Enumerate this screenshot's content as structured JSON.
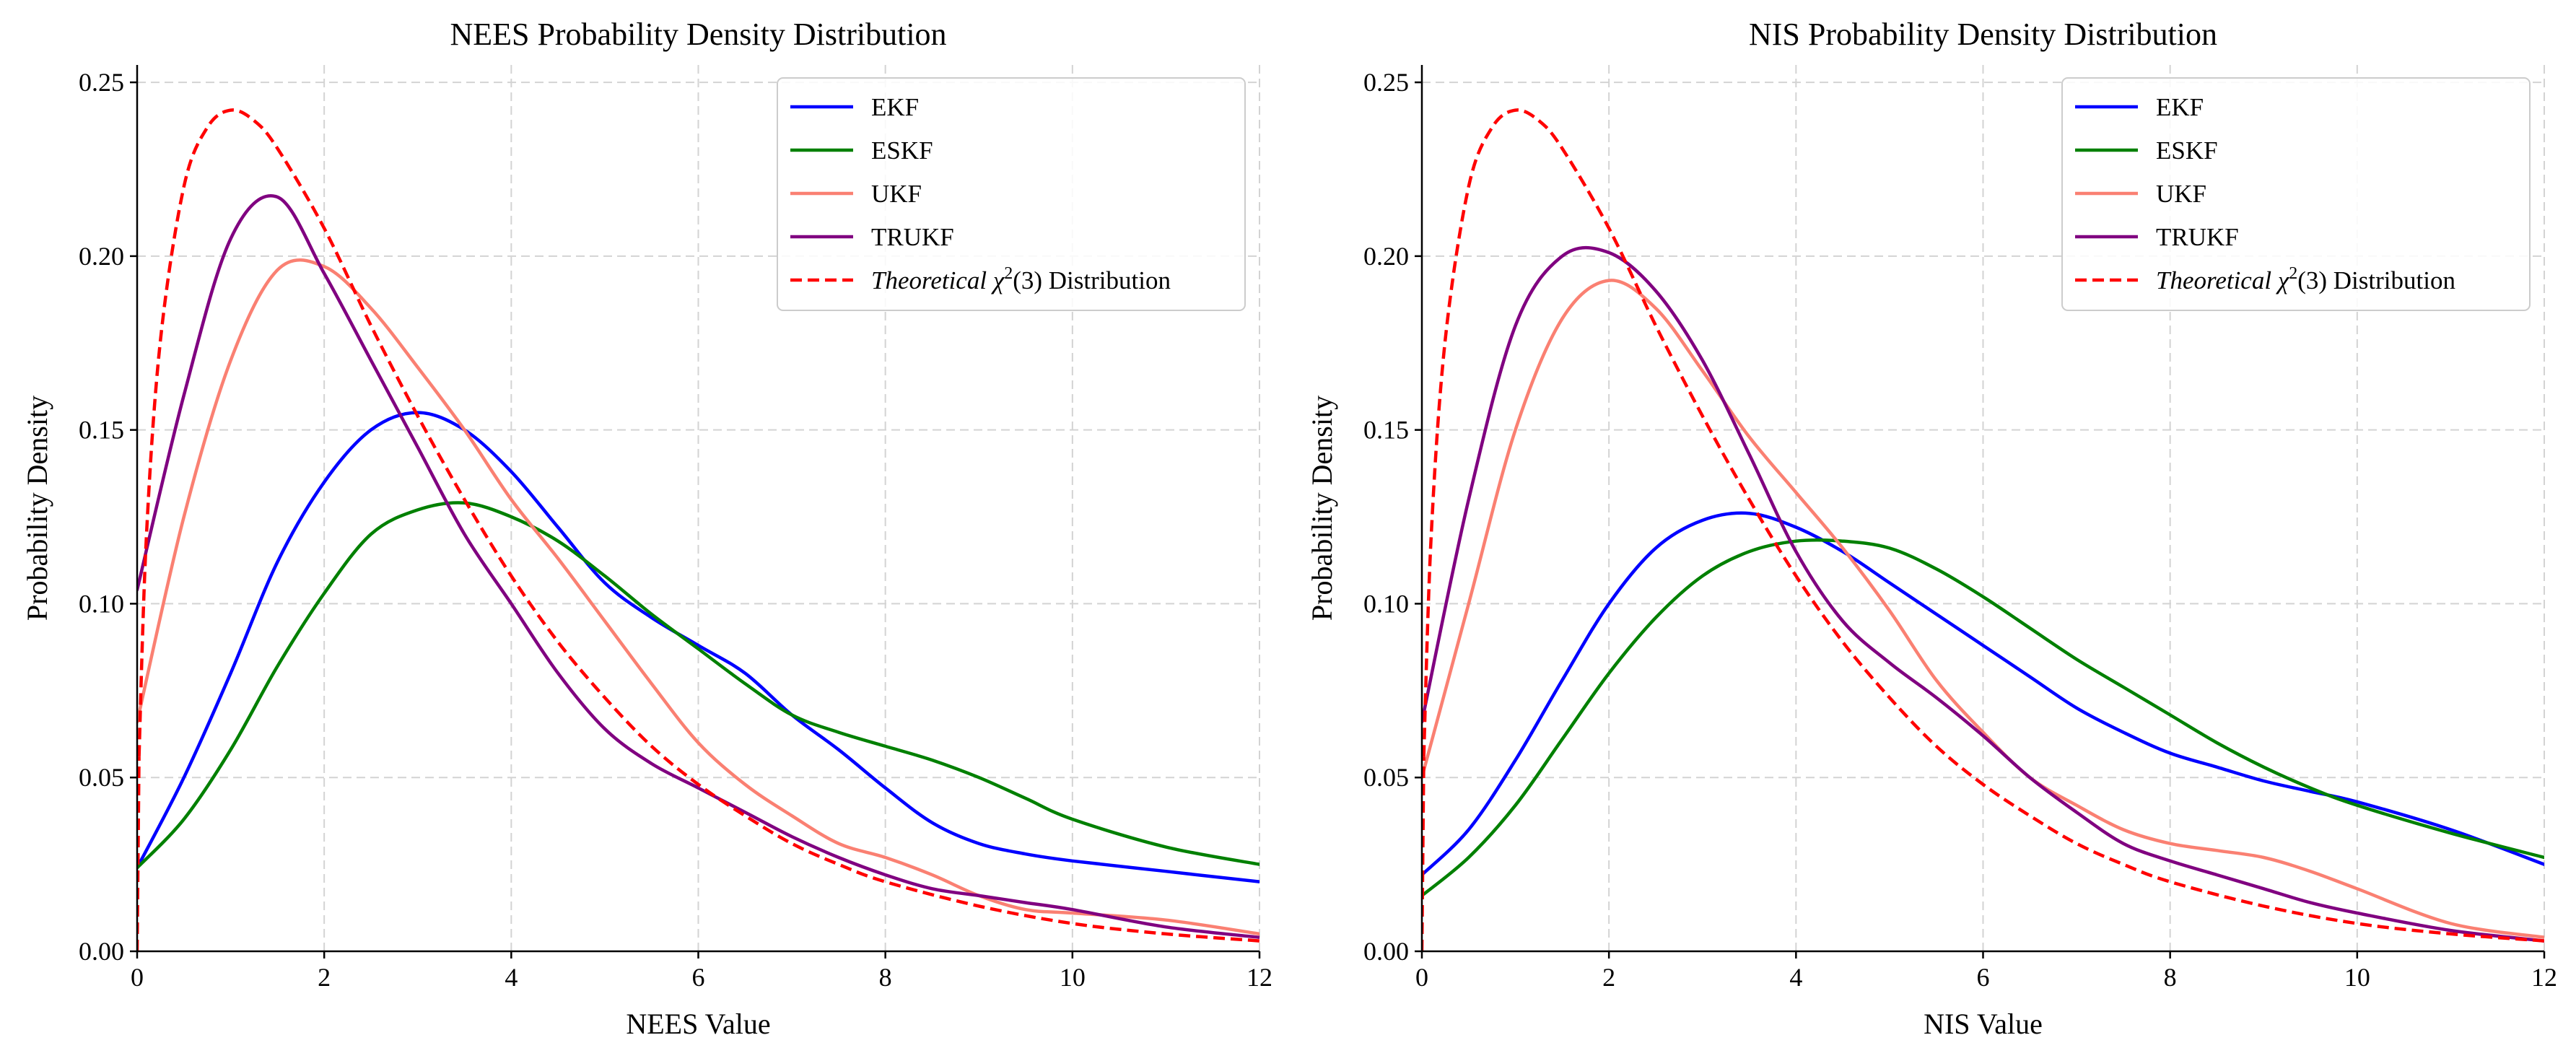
{
  "chart_data": [
    {
      "type": "line",
      "title": "NEES Probability Density Distribution",
      "xlabel": "NEES Value",
      "ylabel": "Probability Density",
      "xlim": [
        0,
        12
      ],
      "ylim": [
        0,
        0.255
      ],
      "xticks": [
        "0",
        "2",
        "4",
        "6",
        "8",
        "10",
        "12"
      ],
      "yticks": [
        "0.00",
        "0.05",
        "0.10",
        "0.15",
        "0.20",
        "0.25"
      ],
      "grid": true,
      "legend_position": "top-right",
      "series": [
        {
          "name": "EKF",
          "color": "#0000ff",
          "dash": "solid",
          "points": [
            [
              0,
              0.024
            ],
            [
              0.5,
              0.05
            ],
            [
              1,
              0.08
            ],
            [
              1.5,
              0.112
            ],
            [
              2,
              0.135
            ],
            [
              2.5,
              0.15
            ],
            [
              3,
              0.155
            ],
            [
              3.5,
              0.15
            ],
            [
              4,
              0.138
            ],
            [
              4.5,
              0.122
            ],
            [
              5,
              0.106
            ],
            [
              5.5,
              0.096
            ],
            [
              6,
              0.088
            ],
            [
              6.5,
              0.08
            ],
            [
              7,
              0.068
            ],
            [
              7.5,
              0.058
            ],
            [
              8,
              0.047
            ],
            [
              8.5,
              0.037
            ],
            [
              9,
              0.031
            ],
            [
              9.5,
              0.028
            ],
            [
              10,
              0.026
            ],
            [
              11,
              0.023
            ],
            [
              12,
              0.02
            ]
          ]
        },
        {
          "name": "ESKF",
          "color": "#008000",
          "dash": "solid",
          "points": [
            [
              0,
              0.024
            ],
            [
              0.5,
              0.038
            ],
            [
              1,
              0.058
            ],
            [
              1.5,
              0.082
            ],
            [
              2,
              0.103
            ],
            [
              2.5,
              0.12
            ],
            [
              3,
              0.127
            ],
            [
              3.5,
              0.129
            ],
            [
              4,
              0.125
            ],
            [
              4.5,
              0.118
            ],
            [
              5,
              0.108
            ],
            [
              5.5,
              0.097
            ],
            [
              6,
              0.087
            ],
            [
              6.5,
              0.077
            ],
            [
              7,
              0.068
            ],
            [
              7.5,
              0.063
            ],
            [
              8,
              0.059
            ],
            [
              8.5,
              0.055
            ],
            [
              9,
              0.05
            ],
            [
              9.5,
              0.044
            ],
            [
              10,
              0.038
            ],
            [
              11,
              0.03
            ],
            [
              12,
              0.025
            ]
          ]
        },
        {
          "name": "UKF",
          "color": "#fa8072",
          "dash": "solid",
          "points": [
            [
              0,
              0.066
            ],
            [
              0.5,
              0.125
            ],
            [
              1,
              0.17
            ],
            [
              1.5,
              0.196
            ],
            [
              2,
              0.197
            ],
            [
              2.5,
              0.185
            ],
            [
              3,
              0.168
            ],
            [
              3.5,
              0.15
            ],
            [
              4,
              0.13
            ],
            [
              4.5,
              0.113
            ],
            [
              5,
              0.095
            ],
            [
              5.5,
              0.077
            ],
            [
              6,
              0.06
            ],
            [
              6.5,
              0.048
            ],
            [
              7,
              0.039
            ],
            [
              7.5,
              0.031
            ],
            [
              8,
              0.027
            ],
            [
              8.5,
              0.022
            ],
            [
              9,
              0.016
            ],
            [
              9.5,
              0.012
            ],
            [
              10,
              0.011
            ],
            [
              11,
              0.009
            ],
            [
              12,
              0.005
            ]
          ]
        },
        {
          "name": "TRUKF",
          "color": "#800080",
          "dash": "solid",
          "points": [
            [
              0,
              0.104
            ],
            [
              0.5,
              0.16
            ],
            [
              1,
              0.205
            ],
            [
              1.5,
              0.217
            ],
            [
              2,
              0.195
            ],
            [
              2.5,
              0.17
            ],
            [
              3,
              0.145
            ],
            [
              3.5,
              0.12
            ],
            [
              4,
              0.1
            ],
            [
              4.5,
              0.08
            ],
            [
              5,
              0.064
            ],
            [
              5.5,
              0.054
            ],
            [
              6,
              0.047
            ],
            [
              6.5,
              0.04
            ],
            [
              7,
              0.033
            ],
            [
              7.5,
              0.027
            ],
            [
              8,
              0.022
            ],
            [
              8.5,
              0.018
            ],
            [
              9,
              0.016
            ],
            [
              9.5,
              0.014
            ],
            [
              10,
              0.012
            ],
            [
              11,
              0.007
            ],
            [
              12,
              0.004
            ]
          ]
        },
        {
          "name": "Theoretical χ²(3) Distribution",
          "color": "#ff0000",
          "dash": "dashed",
          "points": [
            [
              0.02,
              0.056
            ],
            [
              0.1,
              0.12
            ],
            [
              0.25,
              0.176
            ],
            [
              0.5,
              0.22
            ],
            [
              0.75,
              0.237
            ],
            [
              1,
              0.242
            ],
            [
              1.25,
              0.239
            ],
            [
              1.5,
              0.231
            ],
            [
              2,
              0.208
            ],
            [
              2.5,
              0.18
            ],
            [
              3,
              0.154
            ],
            [
              3.5,
              0.13
            ],
            [
              4,
              0.108
            ],
            [
              4.5,
              0.089
            ],
            [
              5,
              0.073
            ],
            [
              5.5,
              0.059
            ],
            [
              6,
              0.048
            ],
            [
              6.5,
              0.039
            ],
            [
              7,
              0.031
            ],
            [
              7.5,
              0.025
            ],
            [
              8,
              0.02
            ],
            [
              9,
              0.013
            ],
            [
              10,
              0.008
            ],
            [
              11,
              0.005
            ],
            [
              12,
              0.003
            ]
          ]
        }
      ]
    },
    {
      "type": "line",
      "title": "NIS Probability Density Distribution",
      "xlabel": "NIS Value",
      "ylabel": "Probability Density",
      "xlim": [
        0,
        12
      ],
      "ylim": [
        0,
        0.255
      ],
      "xticks": [
        "0",
        "2",
        "4",
        "6",
        "8",
        "10",
        "12"
      ],
      "yticks": [
        "0.00",
        "0.05",
        "0.10",
        "0.15",
        "0.20",
        "0.25"
      ],
      "grid": true,
      "legend_position": "top-right",
      "series": [
        {
          "name": "EKF",
          "color": "#0000ff",
          "dash": "solid",
          "points": [
            [
              0,
              0.022
            ],
            [
              0.5,
              0.035
            ],
            [
              1,
              0.055
            ],
            [
              1.5,
              0.078
            ],
            [
              2,
              0.1
            ],
            [
              2.5,
              0.116
            ],
            [
              3,
              0.124
            ],
            [
              3.5,
              0.126
            ],
            [
              4,
              0.122
            ],
            [
              4.5,
              0.115
            ],
            [
              5,
              0.106
            ],
            [
              5.5,
              0.097
            ],
            [
              6,
              0.088
            ],
            [
              6.5,
              0.079
            ],
            [
              7,
              0.07
            ],
            [
              7.5,
              0.063
            ],
            [
              8,
              0.057
            ],
            [
              8.5,
              0.053
            ],
            [
              9,
              0.049
            ],
            [
              9.5,
              0.046
            ],
            [
              10,
              0.043
            ],
            [
              11,
              0.035
            ],
            [
              12,
              0.025
            ]
          ]
        },
        {
          "name": "ESKF",
          "color": "#008000",
          "dash": "solid",
          "points": [
            [
              0,
              0.016
            ],
            [
              0.5,
              0.027
            ],
            [
              1,
              0.042
            ],
            [
              1.5,
              0.061
            ],
            [
              2,
              0.08
            ],
            [
              2.5,
              0.096
            ],
            [
              3,
              0.108
            ],
            [
              3.5,
              0.115
            ],
            [
              4,
              0.118
            ],
            [
              4.5,
              0.118
            ],
            [
              5,
              0.116
            ],
            [
              5.5,
              0.11
            ],
            [
              6,
              0.102
            ],
            [
              6.5,
              0.093
            ],
            [
              7,
              0.084
            ],
            [
              7.5,
              0.076
            ],
            [
              8,
              0.068
            ],
            [
              8.5,
              0.06
            ],
            [
              9,
              0.053
            ],
            [
              9.5,
              0.047
            ],
            [
              10,
              0.042
            ],
            [
              11,
              0.034
            ],
            [
              12,
              0.027
            ]
          ]
        },
        {
          "name": "UKF",
          "color": "#fa8072",
          "dash": "solid",
          "points": [
            [
              0,
              0.05
            ],
            [
              0.5,
              0.1
            ],
            [
              1,
              0.15
            ],
            [
              1.5,
              0.182
            ],
            [
              2,
              0.193
            ],
            [
              2.5,
              0.185
            ],
            [
              3,
              0.167
            ],
            [
              3.5,
              0.148
            ],
            [
              4,
              0.132
            ],
            [
              4.5,
              0.116
            ],
            [
              5,
              0.098
            ],
            [
              5.5,
              0.078
            ],
            [
              6,
              0.063
            ],
            [
              6.5,
              0.05
            ],
            [
              7,
              0.042
            ],
            [
              7.5,
              0.035
            ],
            [
              8,
              0.031
            ],
            [
              8.5,
              0.029
            ],
            [
              9,
              0.027
            ],
            [
              9.5,
              0.023
            ],
            [
              10,
              0.018
            ],
            [
              11,
              0.008
            ],
            [
              12,
              0.004
            ]
          ]
        },
        {
          "name": "TRUKF",
          "color": "#800080",
          "dash": "solid",
          "points": [
            [
              0,
              0.066
            ],
            [
              0.5,
              0.13
            ],
            [
              1,
              0.18
            ],
            [
              1.5,
              0.2
            ],
            [
              2,
              0.201
            ],
            [
              2.5,
              0.19
            ],
            [
              3,
              0.17
            ],
            [
              3.5,
              0.143
            ],
            [
              4,
              0.115
            ],
            [
              4.5,
              0.095
            ],
            [
              5,
              0.083
            ],
            [
              5.5,
              0.073
            ],
            [
              6,
              0.062
            ],
            [
              6.5,
              0.05
            ],
            [
              7,
              0.04
            ],
            [
              7.5,
              0.031
            ],
            [
              8,
              0.026
            ],
            [
              8.5,
              0.022
            ],
            [
              9,
              0.018
            ],
            [
              9.5,
              0.014
            ],
            [
              10,
              0.011
            ],
            [
              11,
              0.006
            ],
            [
              12,
              0.003
            ]
          ]
        },
        {
          "name": "Theoretical χ²(3) Distribution",
          "color": "#ff0000",
          "dash": "dashed",
          "points": [
            [
              0.02,
              0.056
            ],
            [
              0.1,
              0.12
            ],
            [
              0.25,
              0.176
            ],
            [
              0.5,
              0.22
            ],
            [
              0.75,
              0.237
            ],
            [
              1,
              0.242
            ],
            [
              1.25,
              0.239
            ],
            [
              1.5,
              0.231
            ],
            [
              2,
              0.208
            ],
            [
              2.5,
              0.18
            ],
            [
              3,
              0.154
            ],
            [
              3.5,
              0.13
            ],
            [
              4,
              0.108
            ],
            [
              4.5,
              0.089
            ],
            [
              5,
              0.073
            ],
            [
              5.5,
              0.059
            ],
            [
              6,
              0.048
            ],
            [
              6.5,
              0.039
            ],
            [
              7,
              0.031
            ],
            [
              7.5,
              0.025
            ],
            [
              8,
              0.02
            ],
            [
              9,
              0.013
            ],
            [
              10,
              0.008
            ],
            [
              11,
              0.005
            ],
            [
              12,
              0.003
            ]
          ]
        }
      ]
    }
  ]
}
